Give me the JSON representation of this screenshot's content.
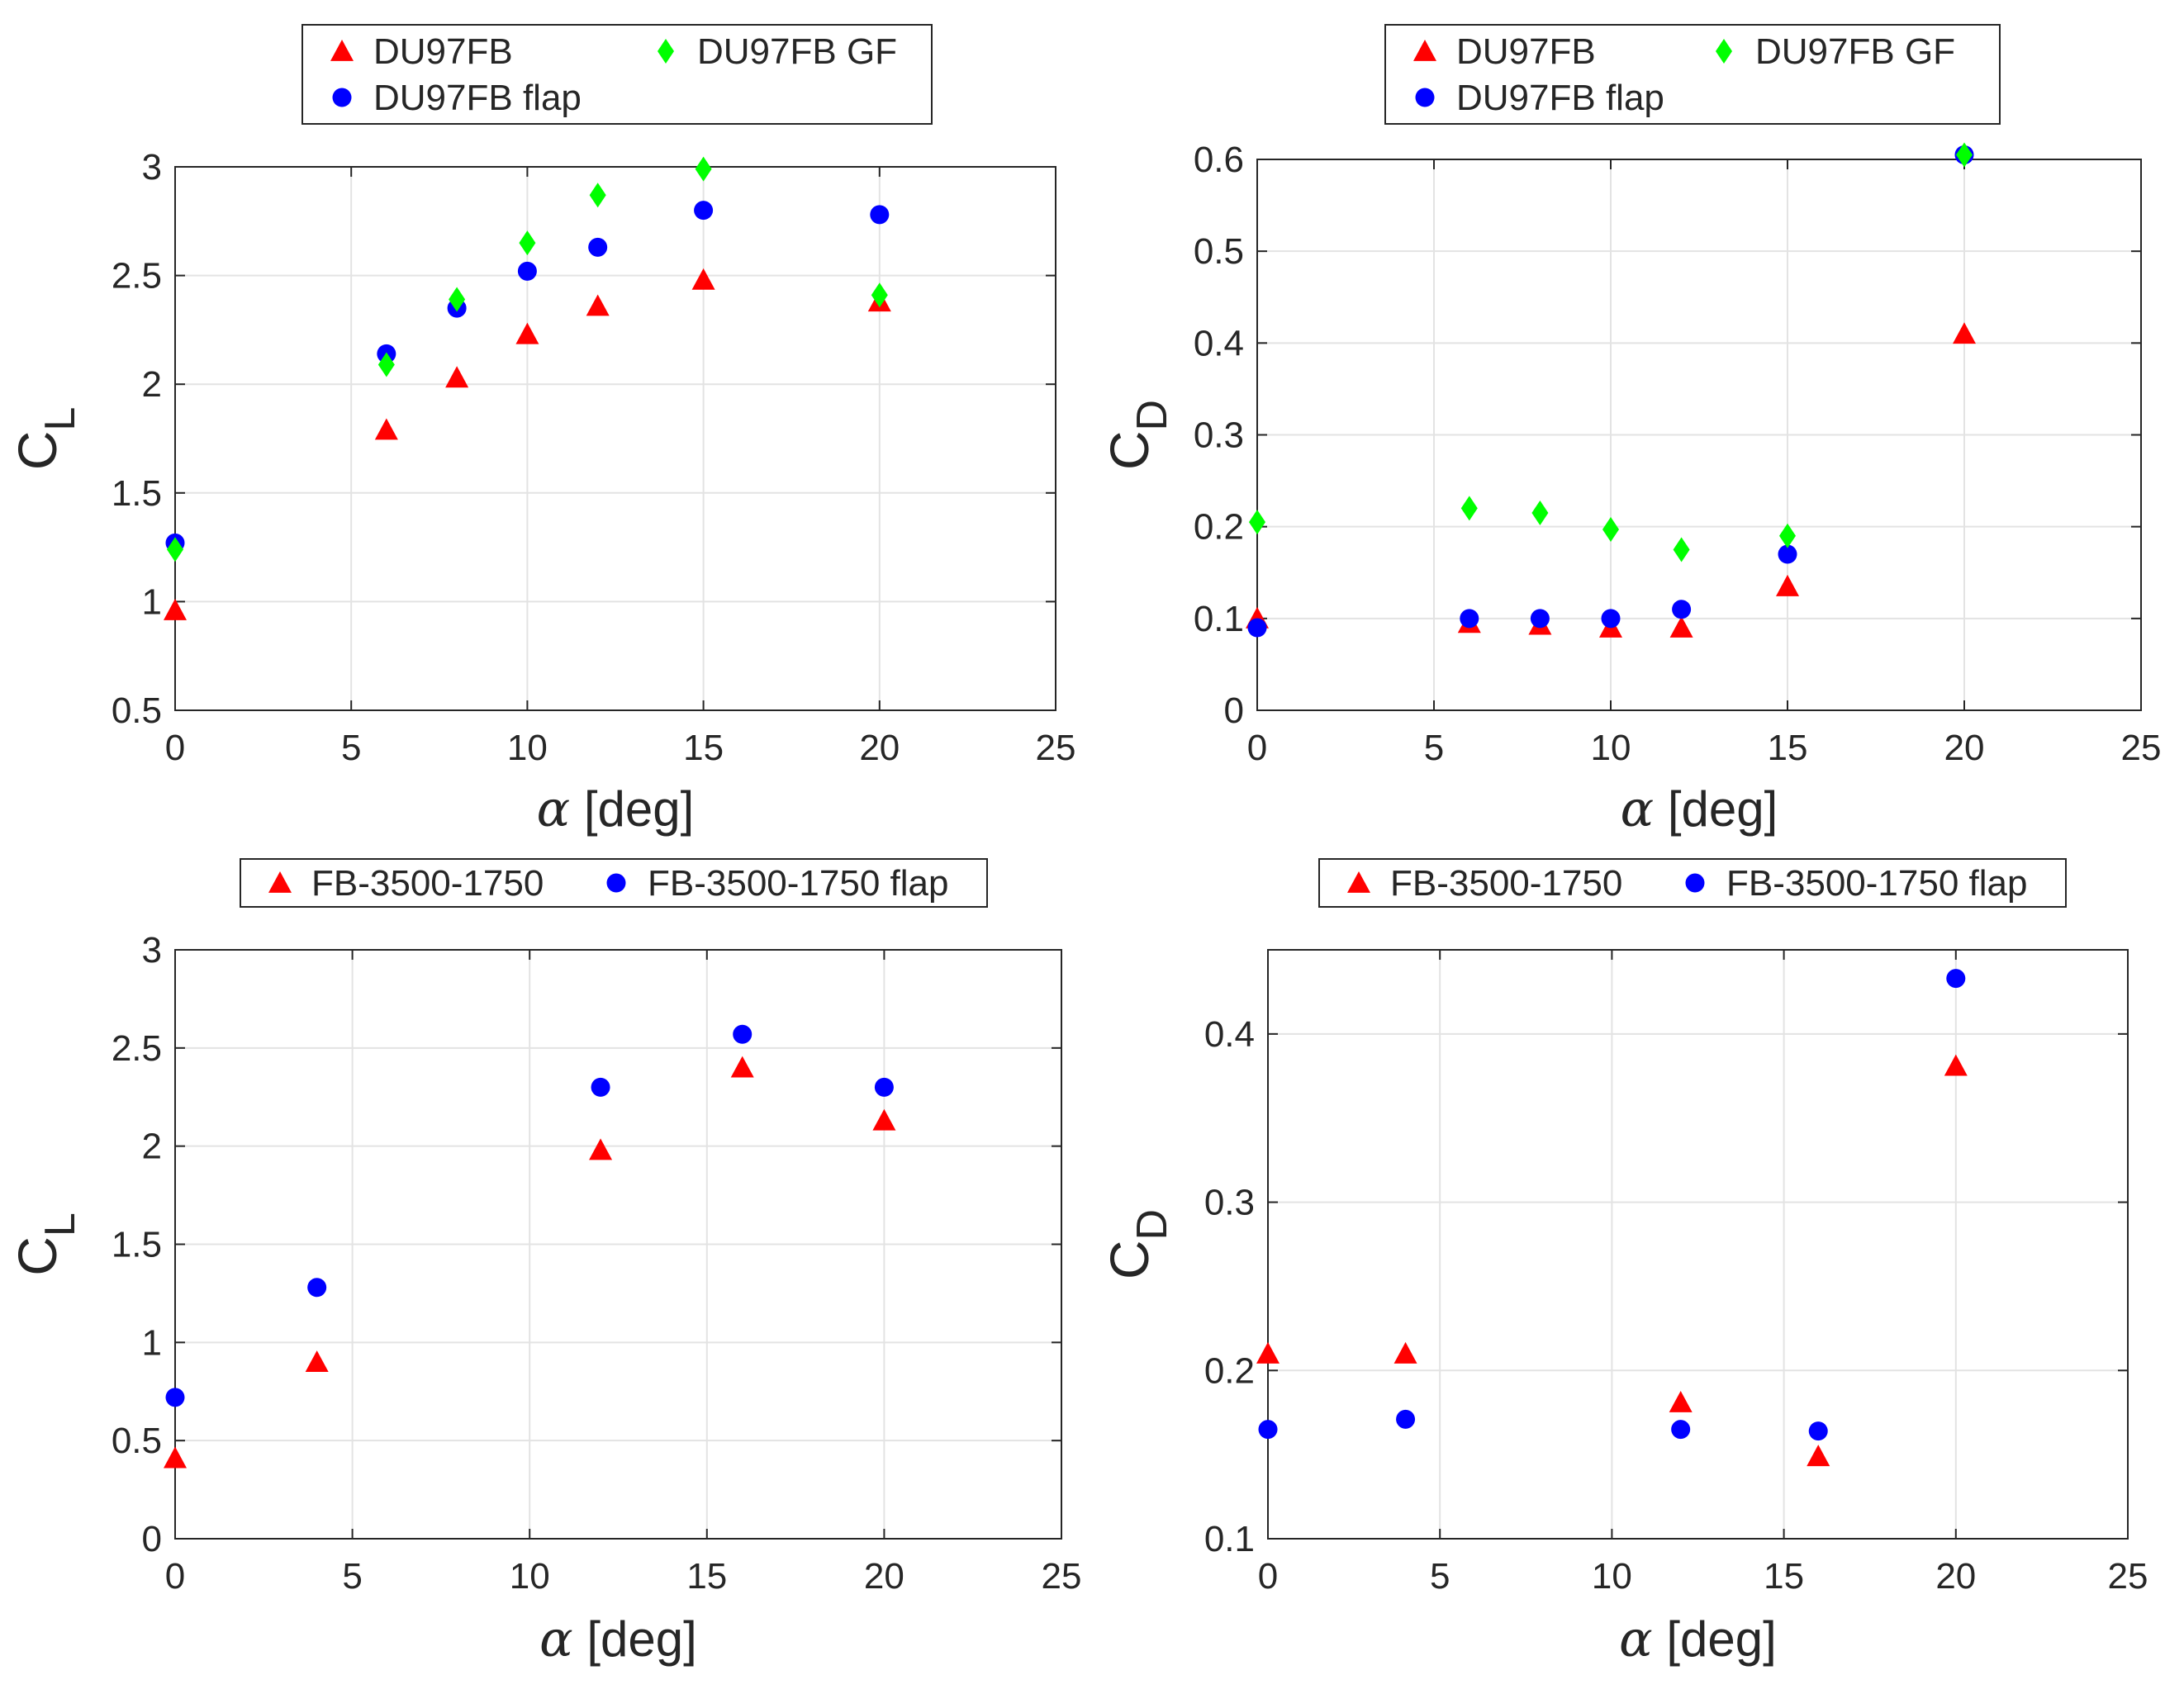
{
  "chart_data": [
    {
      "type": "scatter",
      "xlabel": "α [deg]",
      "ylabel_main": "C",
      "ylabel_sub": "L",
      "xlim": [
        0,
        25
      ],
      "ylim": [
        0.5,
        3
      ],
      "xticks": [
        "0",
        "5",
        "10",
        "15",
        "20",
        "25"
      ],
      "yticks": [
        "0.5",
        "1",
        "1.5",
        "2",
        "2.5",
        "3"
      ],
      "grid": true,
      "legend": {
        "placement": "top",
        "columns": 2
      },
      "series": [
        {
          "name": "DU97FB",
          "marker": "triangle",
          "color": "#ff0000",
          "x": [
            0,
            6,
            8,
            10,
            12,
            15,
            20
          ],
          "y": [
            0.96,
            1.79,
            2.03,
            2.23,
            2.36,
            2.48,
            2.38
          ]
        },
        {
          "name": "DU97FB flap",
          "marker": "circle",
          "color": "#0000ff",
          "x": [
            0,
            6,
            8,
            10,
            12,
            15,
            20
          ],
          "y": [
            1.27,
            2.14,
            2.35,
            2.52,
            2.63,
            2.8,
            2.78
          ]
        },
        {
          "name": "DU97FB GF",
          "marker": "diamond",
          "color": "#00ff00",
          "x": [
            0,
            6,
            8,
            10,
            12,
            15,
            20
          ],
          "y": [
            1.24,
            2.09,
            2.39,
            2.65,
            2.87,
            2.99,
            2.41
          ]
        }
      ]
    },
    {
      "type": "scatter",
      "xlabel": "α [deg]",
      "ylabel_main": "C",
      "ylabel_sub": "D",
      "xlim": [
        0,
        25
      ],
      "ylim": [
        0,
        0.6
      ],
      "xticks": [
        "0",
        "5",
        "10",
        "15",
        "20",
        "25"
      ],
      "yticks": [
        "0",
        "0.1",
        "0.2",
        "0.3",
        "0.4",
        "0.5",
        "0.6"
      ],
      "grid": true,
      "legend": {
        "placement": "top",
        "columns": 2
      },
      "series": [
        {
          "name": "DU97FB",
          "marker": "triangle",
          "color": "#ff0000",
          "x": [
            0,
            6,
            8,
            10,
            12,
            15,
            20
          ],
          "y": [
            0.1,
            0.095,
            0.093,
            0.09,
            0.09,
            0.135,
            0.41
          ]
        },
        {
          "name": "DU97FB flap",
          "marker": "circle",
          "color": "#0000ff",
          "x": [
            0,
            6,
            8,
            10,
            12,
            15,
            20
          ],
          "y": [
            0.09,
            0.1,
            0.1,
            0.1,
            0.11,
            0.17,
            0.605
          ]
        },
        {
          "name": "DU97FB GF",
          "marker": "diamond",
          "color": "#00ff00",
          "x": [
            0,
            6,
            8,
            10,
            12,
            15,
            20
          ],
          "y": [
            0.205,
            0.22,
            0.215,
            0.197,
            0.175,
            0.19,
            0.605
          ]
        }
      ]
    },
    {
      "type": "scatter",
      "xlabel": "α [deg]",
      "ylabel_main": "C",
      "ylabel_sub": "L",
      "xlim": [
        0,
        25
      ],
      "ylim": [
        0,
        3
      ],
      "xticks": [
        "0",
        "5",
        "10",
        "15",
        "20",
        "25"
      ],
      "yticks": [
        "0",
        "0.5",
        "1",
        "1.5",
        "2",
        "2.5",
        "3"
      ],
      "grid": true,
      "legend": {
        "placement": "top",
        "columns": 2
      },
      "series": [
        {
          "name": "FB-3500-1750",
          "marker": "triangle",
          "color": "#ff0000",
          "x": [
            0,
            4,
            12,
            16,
            20
          ],
          "y": [
            0.41,
            0.9,
            1.98,
            2.4,
            2.13
          ]
        },
        {
          "name": "FB-3500-1750 flap",
          "marker": "circle",
          "color": "#0000ff",
          "x": [
            0,
            4,
            12,
            16,
            20
          ],
          "y": [
            0.72,
            1.28,
            2.3,
            2.57,
            2.3
          ]
        }
      ]
    },
    {
      "type": "scatter",
      "xlabel": "α [deg]",
      "ylabel_main": "C",
      "ylabel_sub": "D",
      "xlim": [
        0,
        25
      ],
      "ylim": [
        0.1,
        0.45
      ],
      "xticks": [
        "0",
        "5",
        "10",
        "15",
        "20",
        "25"
      ],
      "yticks": [
        "0.1",
        "0.2",
        "0.3",
        "0.4"
      ],
      "ytick_values": [
        0.1,
        0.2,
        0.3,
        0.4
      ],
      "grid": true,
      "legend": {
        "placement": "top",
        "columns": 2
      },
      "series": [
        {
          "name": "FB-3500-1750",
          "marker": "triangle",
          "color": "#ff0000",
          "x": [
            0,
            4,
            12,
            16,
            20
          ],
          "y": [
            0.21,
            0.21,
            0.181,
            0.149,
            0.381
          ]
        },
        {
          "name": "FB-3500-1750 flap",
          "marker": "circle",
          "color": "#0000ff",
          "x": [
            0,
            4,
            12,
            16,
            20
          ],
          "y": [
            0.165,
            0.171,
            0.165,
            0.164,
            0.433
          ]
        }
      ]
    }
  ]
}
